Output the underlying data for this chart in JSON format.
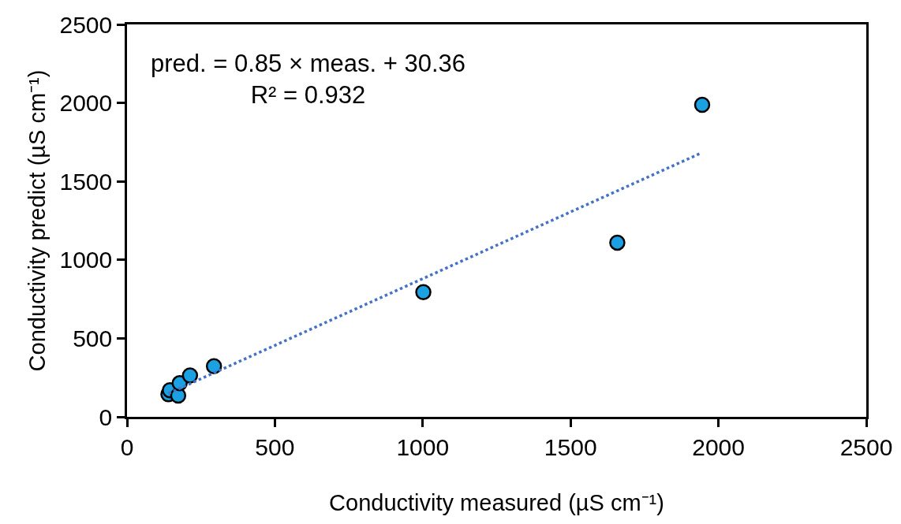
{
  "chart_data": {
    "type": "scatter",
    "xlabel": "Conductivity measured (µS cm⁻¹)",
    "ylabel": "Conductivity predict (µS cm⁻¹)",
    "series": [
      {
        "color": "#1ba1e2",
        "marker": "circle",
        "x": [
          140,
          145,
          173,
          178,
          213,
          294,
          1002,
          1658,
          1945
        ],
        "values": [
          144,
          169,
          136,
          214,
          264,
          323,
          794,
          1110,
          1988
        ]
      },
      {
        "type": "line",
        "color": "#4472c4",
        "line_style": "dotted",
        "x": [
          140,
          1936
        ],
        "values": [
          149,
          1676
        ]
      }
    ],
    "annotations": [
      "pred. = 0.85 × meas. + 30.36",
      "R² = 0.932"
    ],
    "xlim": [
      0,
      2500
    ],
    "ylim": [
      0,
      2500
    ],
    "xticks": [
      0,
      500,
      1000,
      1500,
      2000,
      2500
    ],
    "yticks": [
      0,
      500,
      1000,
      1500,
      2000,
      2500
    ]
  }
}
